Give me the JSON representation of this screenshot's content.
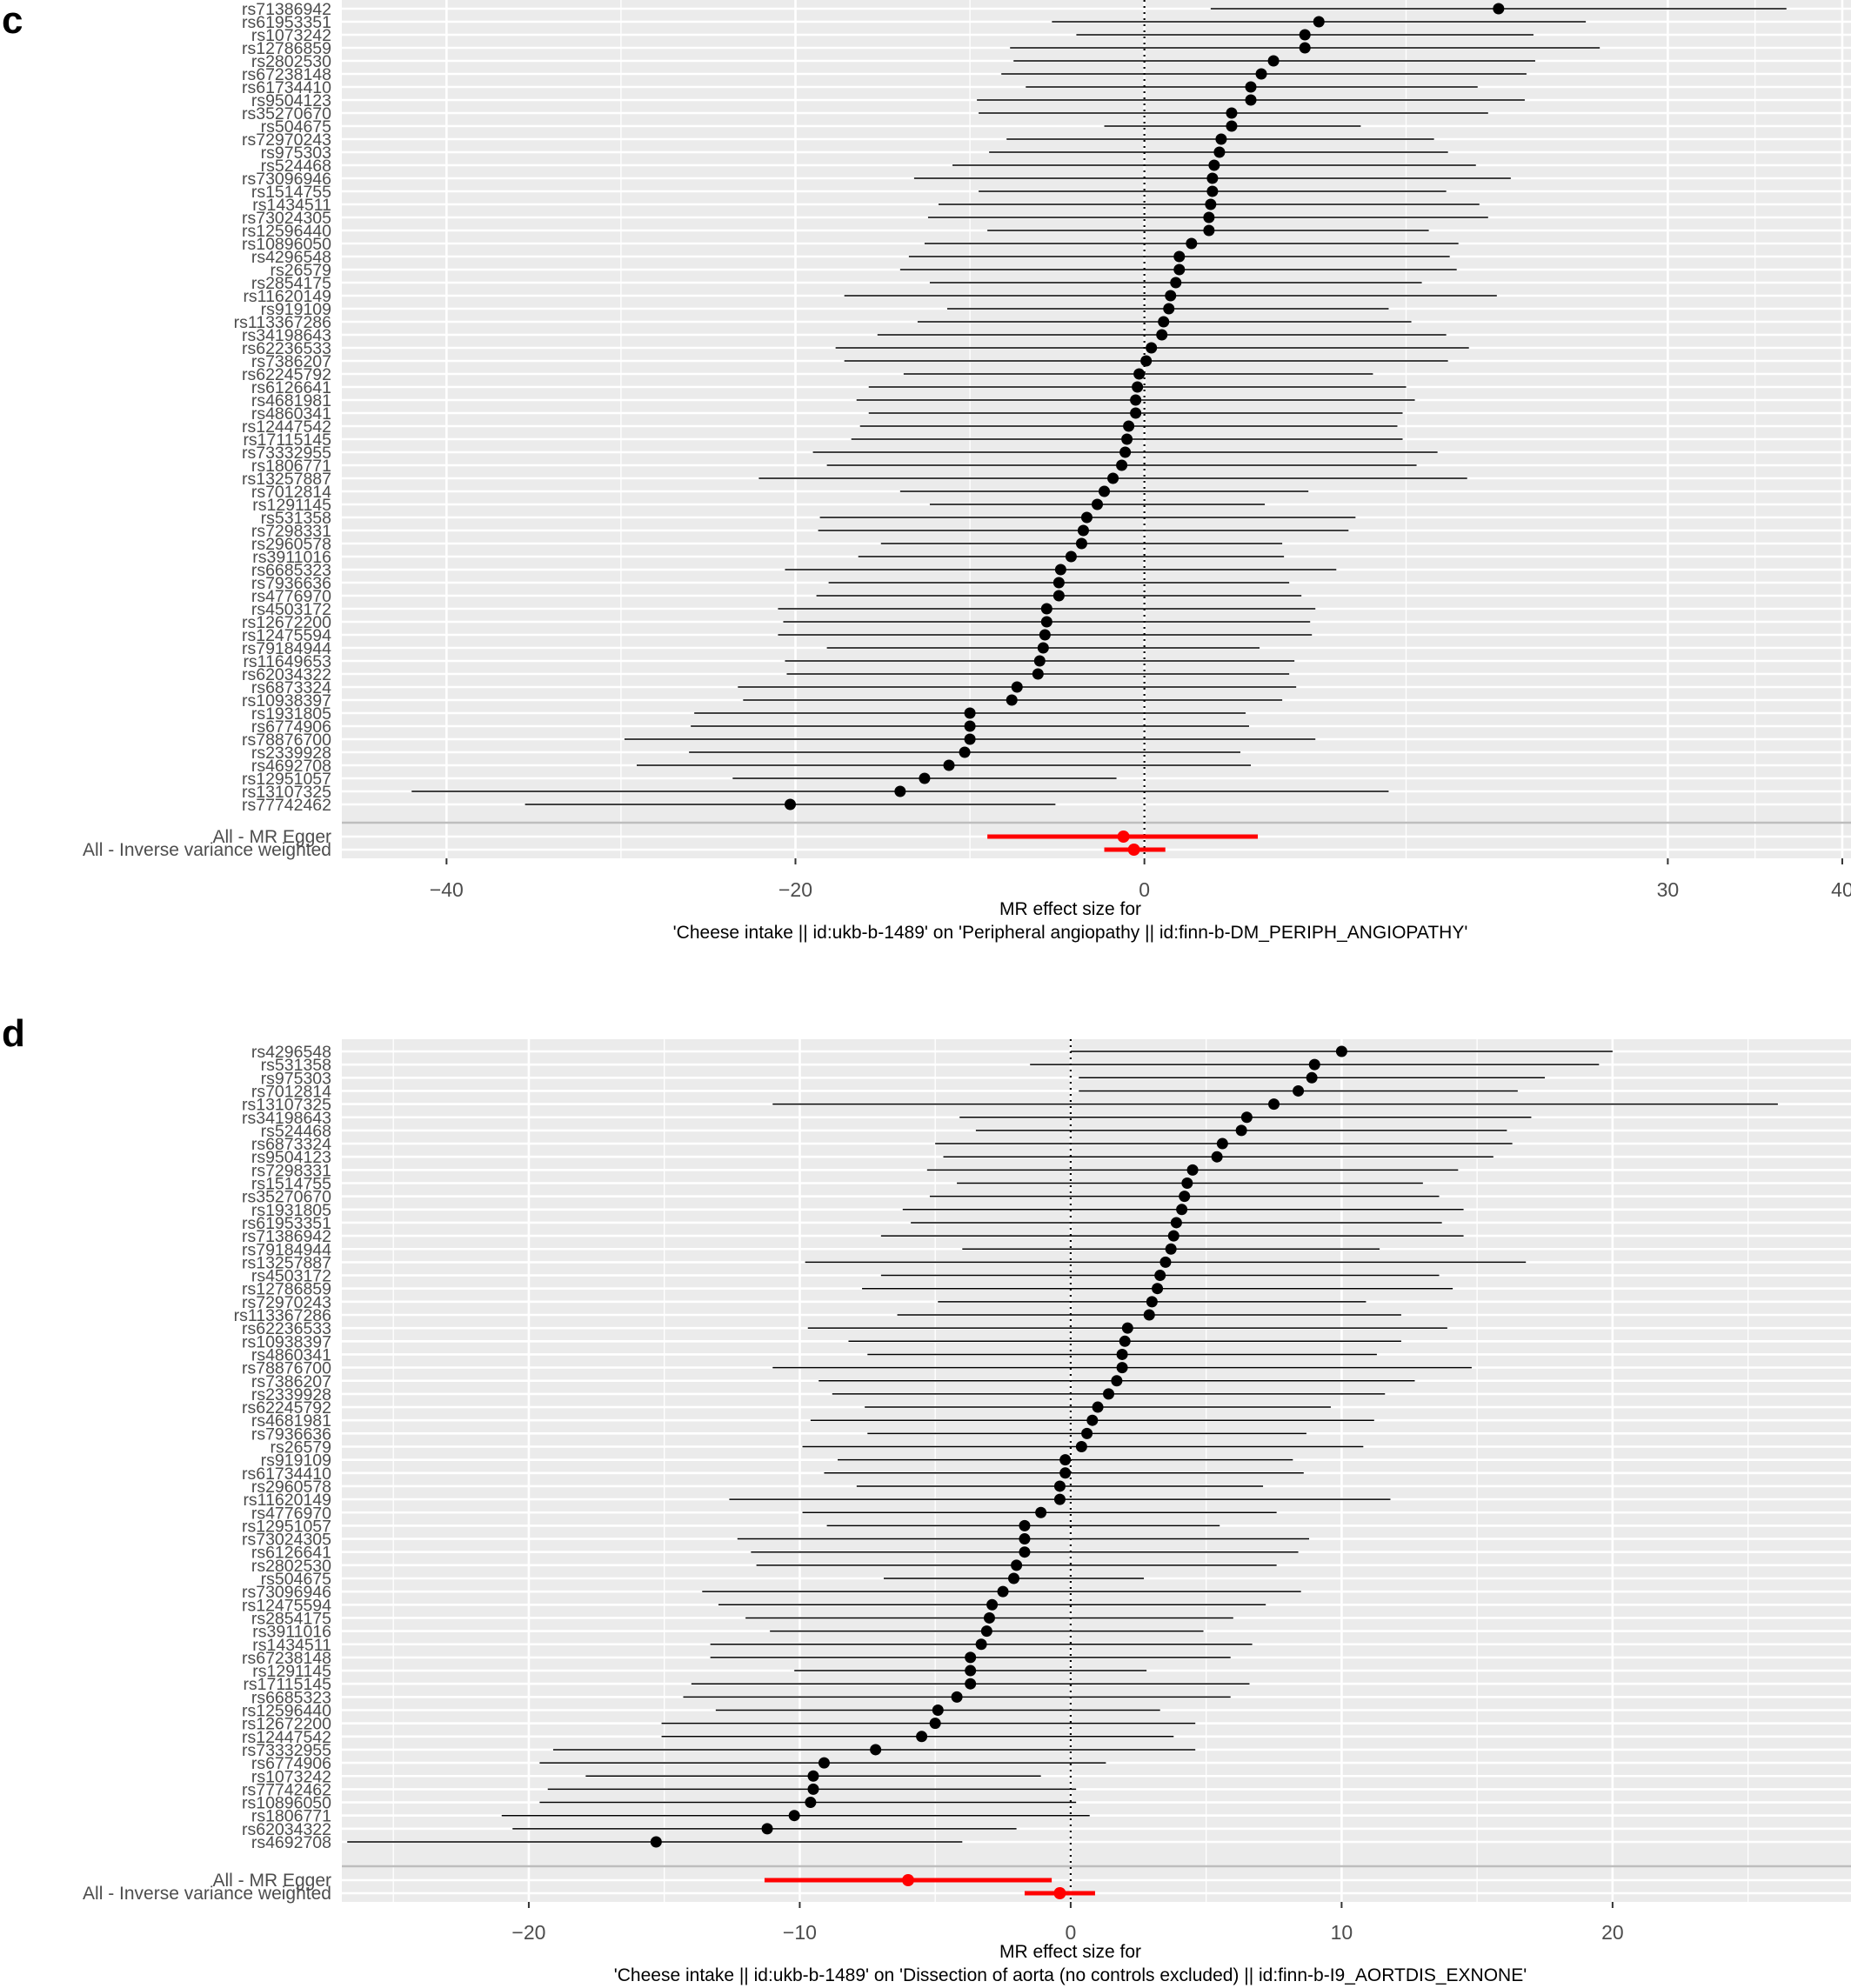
{
  "chart_data": [
    {
      "type": "forest",
      "panel": "c",
      "xlabel_line1": "MR effect size for",
      "xlabel_line2": "'Cheese intake || id:ukb-b-1489' on 'Peripheral angiopathy || id:finn-b-DM_PERIPH_ANGIOPATHY'",
      "xlim": [
        -46.0,
        40.5
      ],
      "xticks": [
        -40,
        -20,
        0,
        30,
        40
      ],
      "reference_line": 0,
      "snps": [
        {
          "label": "rs71386942",
          "b": 20.3,
          "lo": 3.8,
          "hi": 36.8
        },
        {
          "label": "rs61953351",
          "b": 10.0,
          "lo": -5.3,
          "hi": 25.3
        },
        {
          "label": "rs1073242",
          "b": 9.2,
          "lo": -3.9,
          "hi": 22.3
        },
        {
          "label": "rs12786859",
          "b": 9.2,
          "lo": -7.7,
          "hi": 26.1
        },
        {
          "label": "rs2802530",
          "b": 7.4,
          "lo": -7.5,
          "hi": 22.4
        },
        {
          "label": "rs67238148",
          "b": 6.7,
          "lo": -8.2,
          "hi": 21.9
        },
        {
          "label": "rs61734410",
          "b": 6.1,
          "lo": -6.8,
          "hi": 19.1
        },
        {
          "label": "rs9504123",
          "b": 6.1,
          "lo": -9.6,
          "hi": 21.8
        },
        {
          "label": "rs35270670",
          "b": 5.0,
          "lo": -9.5,
          "hi": 19.7
        },
        {
          "label": "rs504675",
          "b": 5.0,
          "lo": -2.3,
          "hi": 12.4
        },
        {
          "label": "rs72970243",
          "b": 4.4,
          "lo": -7.9,
          "hi": 16.6
        },
        {
          "label": "rs975303",
          "b": 4.3,
          "lo": -8.9,
          "hi": 17.4
        },
        {
          "label": "rs524468",
          "b": 4.0,
          "lo": -11.0,
          "hi": 19.0
        },
        {
          "label": "rs73096946",
          "b": 3.9,
          "lo": -13.2,
          "hi": 21.0
        },
        {
          "label": "rs1514755",
          "b": 3.9,
          "lo": -9.5,
          "hi": 17.3
        },
        {
          "label": "rs1434511",
          "b": 3.8,
          "lo": -11.8,
          "hi": 19.2
        },
        {
          "label": "rs73024305",
          "b": 3.7,
          "lo": -12.4,
          "hi": 19.7
        },
        {
          "label": "rs12596440",
          "b": 3.7,
          "lo": -9.0,
          "hi": 16.3
        },
        {
          "label": "rs10896050",
          "b": 2.7,
          "lo": -12.6,
          "hi": 18.0
        },
        {
          "label": "rs4296548",
          "b": 2.0,
          "lo": -13.5,
          "hi": 17.5
        },
        {
          "label": "rs26579",
          "b": 2.0,
          "lo": -14.0,
          "hi": 17.9
        },
        {
          "label": "rs2854175",
          "b": 1.8,
          "lo": -12.3,
          "hi": 15.9
        },
        {
          "label": "rs11620149",
          "b": 1.5,
          "lo": -17.2,
          "hi": 20.2
        },
        {
          "label": "rs919109",
          "b": 1.4,
          "lo": -11.3,
          "hi": 14.0
        },
        {
          "label": "rs113367286",
          "b": 1.1,
          "lo": -13.0,
          "hi": 15.3
        },
        {
          "label": "rs34198643",
          "b": 1.0,
          "lo": -15.3,
          "hi": 17.3
        },
        {
          "label": "rs62236533",
          "b": 0.4,
          "lo": -17.7,
          "hi": 18.6
        },
        {
          "label": "rs7386207",
          "b": 0.1,
          "lo": -17.2,
          "hi": 17.4
        },
        {
          "label": "rs62245792",
          "b": -0.3,
          "lo": -13.8,
          "hi": 13.1
        },
        {
          "label": "rs6126641",
          "b": -0.4,
          "lo": -15.8,
          "hi": 15.0
        },
        {
          "label": "rs4681981",
          "b": -0.5,
          "lo": -16.5,
          "hi": 15.5
        },
        {
          "label": "rs4860341",
          "b": -0.5,
          "lo": -15.8,
          "hi": 14.8
        },
        {
          "label": "rs12447542",
          "b": -0.9,
          "lo": -16.3,
          "hi": 14.5
        },
        {
          "label": "rs17115145",
          "b": -1.0,
          "lo": -16.8,
          "hi": 14.8
        },
        {
          "label": "rs73332955",
          "b": -1.1,
          "lo": -19.0,
          "hi": 16.8
        },
        {
          "label": "rs1806771",
          "b": -1.3,
          "lo": -18.2,
          "hi": 15.6
        },
        {
          "label": "rs13257887",
          "b": -1.8,
          "lo": -22.1,
          "hi": 18.5
        },
        {
          "label": "rs7012814",
          "b": -2.3,
          "lo": -14.0,
          "hi": 9.4
        },
        {
          "label": "rs1291145",
          "b": -2.7,
          "lo": -12.3,
          "hi": 6.9
        },
        {
          "label": "rs531358",
          "b": -3.3,
          "lo": -18.6,
          "hi": 12.1
        },
        {
          "label": "rs7298331",
          "b": -3.5,
          "lo": -18.7,
          "hi": 11.7
        },
        {
          "label": "rs2960578",
          "b": -3.6,
          "lo": -15.1,
          "hi": 7.9
        },
        {
          "label": "rs3911016",
          "b": -4.2,
          "lo": -16.4,
          "hi": 8.0
        },
        {
          "label": "rs6685323",
          "b": -4.8,
          "lo": -20.6,
          "hi": 11.0
        },
        {
          "label": "rs7936636",
          "b": -4.9,
          "lo": -18.1,
          "hi": 8.3
        },
        {
          "label": "rs4776970",
          "b": -4.9,
          "lo": -18.8,
          "hi": 9.0
        },
        {
          "label": "rs4503172",
          "b": -5.6,
          "lo": -21.0,
          "hi": 9.8
        },
        {
          "label": "rs12672200",
          "b": -5.6,
          "lo": -20.7,
          "hi": 9.5
        },
        {
          "label": "rs12475594",
          "b": -5.7,
          "lo": -21.0,
          "hi": 9.6
        },
        {
          "label": "rs79184944",
          "b": -5.8,
          "lo": -18.2,
          "hi": 6.6
        },
        {
          "label": "rs11649653",
          "b": -6.0,
          "lo": -20.6,
          "hi": 8.6
        },
        {
          "label": "rs62034322",
          "b": -6.1,
          "lo": -20.5,
          "hi": 8.3
        },
        {
          "label": "rs6873324",
          "b": -7.3,
          "lo": -23.3,
          "hi": 8.7
        },
        {
          "label": "rs10938397",
          "b": -7.6,
          "lo": -23.0,
          "hi": 7.9
        },
        {
          "label": "rs1931805",
          "b": -10.0,
          "lo": -25.8,
          "hi": 5.8
        },
        {
          "label": "rs6774906",
          "b": -10.0,
          "lo": -26.0,
          "hi": 6.0
        },
        {
          "label": "rs78876700",
          "b": -10.0,
          "lo": -29.8,
          "hi": 9.8
        },
        {
          "label": "rs2339928",
          "b": -10.3,
          "lo": -26.1,
          "hi": 5.5
        },
        {
          "label": "rs4692708",
          "b": -11.2,
          "lo": -29.1,
          "hi": 6.1
        },
        {
          "label": "rs12951057",
          "b": -12.6,
          "lo": -23.6,
          "hi": -1.6
        },
        {
          "label": "rs13107325",
          "b": -14.0,
          "lo": -42.0,
          "hi": 14.0
        },
        {
          "label": "rs77742462",
          "b": -20.3,
          "lo": -35.5,
          "hi": -5.1
        }
      ],
      "summaries": [
        {
          "label": "All - MR Egger",
          "b": -1.2,
          "lo": -9.0,
          "hi": 6.5
        },
        {
          "label": "All - Inverse variance weighted",
          "b": -0.6,
          "lo": -2.3,
          "hi": 1.2
        }
      ]
    },
    {
      "type": "forest",
      "panel": "d",
      "xlabel_line1": "MR effect size for",
      "xlabel_line2": "'Cheese intake || id:ukb-b-1489' on 'Dissection of aorta (no controls excluded) || id:finn-b-I9_AORTDIS_EXNONE'",
      "xlim": [
        -26.9,
        28.8
      ],
      "xticks": [
        -20,
        -10,
        0,
        10,
        20
      ],
      "reference_line": 0,
      "snps": [
        {
          "label": "rs4296548",
          "b": 10.0,
          "lo": 0.0,
          "hi": 20.0
        },
        {
          "label": "rs531358",
          "b": 9.0,
          "lo": -1.5,
          "hi": 19.5
        },
        {
          "label": "rs975303",
          "b": 8.9,
          "lo": 0.3,
          "hi": 17.5
        },
        {
          "label": "rs7012814",
          "b": 8.4,
          "lo": 0.3,
          "hi": 16.5
        },
        {
          "label": "rs13107325",
          "b": 7.5,
          "lo": -11.0,
          "hi": 26.1
        },
        {
          "label": "rs34198643",
          "b": 6.5,
          "lo": -4.1,
          "hi": 17.0
        },
        {
          "label": "rs524468",
          "b": 6.3,
          "lo": -3.5,
          "hi": 16.1
        },
        {
          "label": "rs6873324",
          "b": 5.6,
          "lo": -5.0,
          "hi": 16.3
        },
        {
          "label": "rs9504123",
          "b": 5.4,
          "lo": -4.7,
          "hi": 15.6
        },
        {
          "label": "rs7298331",
          "b": 4.5,
          "lo": -5.3,
          "hi": 14.3
        },
        {
          "label": "rs1514755",
          "b": 4.3,
          "lo": -4.2,
          "hi": 13.0
        },
        {
          "label": "rs35270670",
          "b": 4.2,
          "lo": -5.2,
          "hi": 13.6
        },
        {
          "label": "rs1931805",
          "b": 4.1,
          "lo": -6.2,
          "hi": 14.5
        },
        {
          "label": "rs61953351",
          "b": 3.9,
          "lo": -5.9,
          "hi": 13.7
        },
        {
          "label": "rs71386942",
          "b": 3.8,
          "lo": -7.0,
          "hi": 14.5
        },
        {
          "label": "rs79184944",
          "b": 3.7,
          "lo": -4.0,
          "hi": 11.4
        },
        {
          "label": "rs13257887",
          "b": 3.5,
          "lo": -9.8,
          "hi": 16.8
        },
        {
          "label": "rs4503172",
          "b": 3.3,
          "lo": -7.0,
          "hi": 13.6
        },
        {
          "label": "rs12786859",
          "b": 3.2,
          "lo": -7.7,
          "hi": 14.1
        },
        {
          "label": "rs72970243",
          "b": 3.0,
          "lo": -4.9,
          "hi": 10.9
        },
        {
          "label": "rs113367286",
          "b": 2.9,
          "lo": -6.4,
          "hi": 12.2
        },
        {
          "label": "rs62236533",
          "b": 2.1,
          "lo": -9.7,
          "hi": 13.9
        },
        {
          "label": "rs10938397",
          "b": 2.0,
          "lo": -8.2,
          "hi": 12.2
        },
        {
          "label": "rs4860341",
          "b": 1.9,
          "lo": -7.5,
          "hi": 11.3
        },
        {
          "label": "rs78876700",
          "b": 1.9,
          "lo": -11.0,
          "hi": 14.8
        },
        {
          "label": "rs7386207",
          "b": 1.7,
          "lo": -9.3,
          "hi": 12.7
        },
        {
          "label": "rs2339928",
          "b": 1.4,
          "lo": -8.8,
          "hi": 11.6
        },
        {
          "label": "rs62245792",
          "b": 1.0,
          "lo": -7.6,
          "hi": 9.6
        },
        {
          "label": "rs4681981",
          "b": 0.8,
          "lo": -9.6,
          "hi": 11.2
        },
        {
          "label": "rs7936636",
          "b": 0.6,
          "lo": -7.5,
          "hi": 8.7
        },
        {
          "label": "rs26579",
          "b": 0.4,
          "lo": -9.9,
          "hi": 10.8
        },
        {
          "label": "rs919109",
          "b": -0.2,
          "lo": -8.6,
          "hi": 8.2
        },
        {
          "label": "rs61734410",
          "b": -0.2,
          "lo": -9.1,
          "hi": 8.6
        },
        {
          "label": "rs2960578",
          "b": -0.4,
          "lo": -7.9,
          "hi": 7.1
        },
        {
          "label": "rs11620149",
          "b": -0.4,
          "lo": -12.6,
          "hi": 11.8
        },
        {
          "label": "rs4776970",
          "b": -1.1,
          "lo": -9.9,
          "hi": 7.6
        },
        {
          "label": "rs12951057",
          "b": -1.7,
          "lo": -9.0,
          "hi": 5.5
        },
        {
          "label": "rs73024305",
          "b": -1.7,
          "lo": -12.3,
          "hi": 8.8
        },
        {
          "label": "rs6126641",
          "b": -1.7,
          "lo": -11.8,
          "hi": 8.4
        },
        {
          "label": "rs2802530",
          "b": -2.0,
          "lo": -11.6,
          "hi": 7.6
        },
        {
          "label": "rs504675",
          "b": -2.1,
          "lo": -6.9,
          "hi": 2.7
        },
        {
          "label": "rs73096946",
          "b": -2.5,
          "lo": -13.6,
          "hi": 8.5
        },
        {
          "label": "rs12475594",
          "b": -2.9,
          "lo": -13.0,
          "hi": 7.2
        },
        {
          "label": "rs2854175",
          "b": -3.0,
          "lo": -12.0,
          "hi": 6.0
        },
        {
          "label": "rs3911016",
          "b": -3.1,
          "lo": -11.1,
          "hi": 4.9
        },
        {
          "label": "rs1434511",
          "b": -3.3,
          "lo": -13.3,
          "hi": 6.7
        },
        {
          "label": "rs67238148",
          "b": -3.7,
          "lo": -13.3,
          "hi": 5.9
        },
        {
          "label": "rs1291145",
          "b": -3.7,
          "lo": -10.2,
          "hi": 2.8
        },
        {
          "label": "rs17115145",
          "b": -3.7,
          "lo": -14.0,
          "hi": 6.6
        },
        {
          "label": "rs6685323",
          "b": -4.2,
          "lo": -14.3,
          "hi": 5.9
        },
        {
          "label": "rs12596440",
          "b": -4.9,
          "lo": -13.1,
          "hi": 3.3
        },
        {
          "label": "rs12672200",
          "b": -5.0,
          "lo": -15.1,
          "hi": 4.6
        },
        {
          "label": "rs12447542",
          "b": -5.5,
          "lo": -15.1,
          "hi": 3.8
        },
        {
          "label": "rs73332955",
          "b": -7.2,
          "lo": -19.1,
          "hi": 4.6
        },
        {
          "label": "rs6774906",
          "b": -9.1,
          "lo": -19.6,
          "hi": 1.3
        },
        {
          "label": "rs1073242",
          "b": -9.5,
          "lo": -17.9,
          "hi": -1.1
        },
        {
          "label": "rs77742462",
          "b": -9.5,
          "lo": -19.3,
          "hi": 0.2
        },
        {
          "label": "rs10896050",
          "b": -9.6,
          "lo": -19.6,
          "hi": 0.2
        },
        {
          "label": "rs1806771",
          "b": -10.2,
          "lo": -21.0,
          "hi": 0.7
        },
        {
          "label": "rs62034322",
          "b": -11.2,
          "lo": -20.6,
          "hi": -2.0
        },
        {
          "label": "rs4692708",
          "b": -15.3,
          "lo": -26.7,
          "hi": -4.0
        }
      ],
      "summaries": [
        {
          "label": "All - MR Egger",
          "b": -6.0,
          "lo": -11.3,
          "hi": -0.7
        },
        {
          "label": "All - Inverse variance weighted",
          "b": -0.4,
          "lo": -1.7,
          "hi": 0.9
        }
      ]
    }
  ]
}
